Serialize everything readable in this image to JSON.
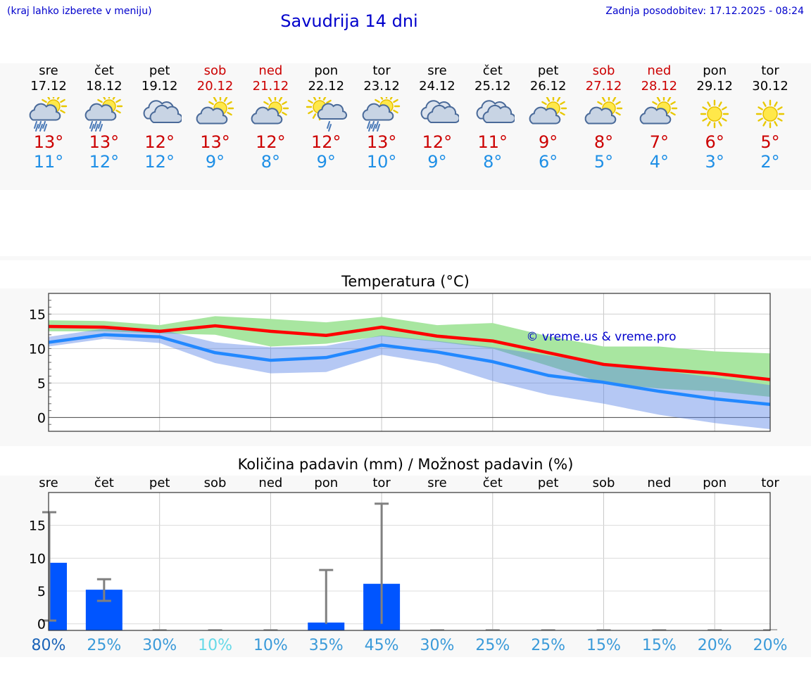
{
  "header": {
    "left_note": "(kraj lahko izberete v meniju)",
    "title": "Savudrija 14 dni",
    "updated": "Zadnja posodobitev: 17.12.2025 - 08:24"
  },
  "days": [
    {
      "name": "sre",
      "date": "17.12",
      "weekend": false,
      "icon": "sun-cloud-rain-icon",
      "tmax": "13°",
      "tmin": "11°"
    },
    {
      "name": "čet",
      "date": "18.12",
      "weekend": false,
      "icon": "sun-cloud-rain-icon",
      "tmax": "13°",
      "tmin": "12°"
    },
    {
      "name": "pet",
      "date": "19.12",
      "weekend": false,
      "icon": "cloudy-icon",
      "tmax": "12°",
      "tmin": "12°"
    },
    {
      "name": "sob",
      "date": "20.12",
      "weekend": true,
      "icon": "sun-cloud-icon",
      "tmax": "13°",
      "tmin": "9°"
    },
    {
      "name": "ned",
      "date": "21.12",
      "weekend": true,
      "icon": "sun-cloud-icon",
      "tmax": "12°",
      "tmin": "8°"
    },
    {
      "name": "pon",
      "date": "22.12",
      "weekend": false,
      "icon": "sun-cloud-light-rain-icon",
      "tmax": "12°",
      "tmin": "9°"
    },
    {
      "name": "tor",
      "date": "23.12",
      "weekend": false,
      "icon": "sun-cloud-rain-icon",
      "tmax": "13°",
      "tmin": "10°"
    },
    {
      "name": "sre",
      "date": "24.12",
      "weekend": false,
      "icon": "cloudy-icon",
      "tmax": "12°",
      "tmin": "9°"
    },
    {
      "name": "čet",
      "date": "25.12",
      "weekend": false,
      "icon": "cloudy-icon",
      "tmax": "11°",
      "tmin": "8°"
    },
    {
      "name": "pet",
      "date": "26.12",
      "weekend": false,
      "icon": "sun-cloud-icon",
      "tmax": "9°",
      "tmin": "6°"
    },
    {
      "name": "sob",
      "date": "27.12",
      "weekend": true,
      "icon": "sun-cloud-icon",
      "tmax": "8°",
      "tmin": "5°"
    },
    {
      "name": "ned",
      "date": "28.12",
      "weekend": true,
      "icon": "sun-cloud-icon",
      "tmax": "7°",
      "tmin": "4°"
    },
    {
      "name": "pon",
      "date": "29.12",
      "weekend": false,
      "icon": "sun-icon",
      "tmax": "6°",
      "tmin": "3°"
    },
    {
      "name": "tor",
      "date": "30.12",
      "weekend": false,
      "icon": "sun-icon",
      "tmax": "5°",
      "tmin": "2°"
    }
  ],
  "colors": {
    "accent": "#0000cc",
    "tmax": "#cc0000",
    "tmin": "#1e8fe6",
    "max_line": "#ff0000",
    "min_line": "#2288ff",
    "max_band": "#a8e6a0",
    "min_band": "#a8c0f0",
    "overlap": "#78c2a0",
    "bar": "#0055ff",
    "whisker": "#808080"
  },
  "chart_data": [
    {
      "type": "line",
      "title": "Temperatura (°C)",
      "ylim": [
        -2,
        18
      ],
      "yticks": [
        "15",
        "10",
        "5",
        "0"
      ],
      "ytick_values": [
        15,
        10,
        5,
        0
      ],
      "watermark": "© vreme.us & vreme.pro",
      "x": [
        0,
        1,
        2,
        3,
        4,
        5,
        6,
        7,
        8,
        9,
        10,
        11,
        12,
        13
      ],
      "series": [
        {
          "name": "max",
          "values": [
            13.2,
            13.1,
            12.5,
            13.3,
            12.5,
            11.9,
            13.1,
            11.8,
            11.1,
            9.4,
            7.7,
            7.0,
            6.4,
            5.5
          ],
          "band_low": [
            12.5,
            12.5,
            12.2,
            12.0,
            10.3,
            10.7,
            11.8,
            11.0,
            10.0,
            7.5,
            5.0,
            4.2,
            3.8,
            3.0
          ],
          "band_high": [
            14.1,
            14.0,
            13.4,
            14.7,
            14.3,
            13.8,
            14.6,
            13.4,
            13.7,
            11.8,
            10.3,
            10.3,
            9.6,
            9.3
          ]
        },
        {
          "name": "min",
          "values": [
            10.9,
            12.0,
            11.7,
            9.4,
            8.3,
            8.7,
            10.5,
            9.5,
            8.1,
            6.1,
            5.1,
            3.8,
            2.7,
            1.9
          ],
          "band_low": [
            10.3,
            11.4,
            10.8,
            7.9,
            6.4,
            6.6,
            9.1,
            7.8,
            5.3,
            3.3,
            2.0,
            0.4,
            -0.8,
            -1.7
          ],
          "band_high": [
            11.7,
            12.9,
            12.8,
            10.9,
            10.2,
            10.4,
            11.9,
            11.1,
            10.2,
            9.0,
            7.9,
            6.8,
            5.8,
            4.7
          ]
        }
      ]
    },
    {
      "type": "bar",
      "title": "Količina padavin (mm) / Možnost padavin (%)",
      "ylim": [
        -1,
        20
      ],
      "yticks": [
        "15",
        "10",
        "5",
        "0"
      ],
      "ytick_values": [
        15,
        10,
        5,
        0
      ],
      "categories": [
        "sre",
        "čet",
        "pet",
        "sob",
        "ned",
        "pon",
        "tor",
        "sre",
        "čet",
        "pet",
        "sob",
        "ned",
        "pon",
        "tor"
      ],
      "values": [
        9.3,
        5.2,
        0,
        0,
        0,
        0.2,
        6.1,
        0,
        0,
        0,
        0,
        0,
        0,
        0
      ],
      "err_low": [
        0.5,
        3.5,
        0,
        0,
        0,
        0,
        0,
        0,
        0,
        0,
        0,
        0,
        0,
        0
      ],
      "err_high": [
        17.0,
        6.8,
        0,
        0,
        0,
        8.2,
        18.3,
        0,
        0,
        0,
        0,
        0,
        0,
        0
      ],
      "probabilities": [
        "80%",
        "25%",
        "30%",
        "10%",
        "10%",
        "35%",
        "45%",
        "30%",
        "25%",
        "25%",
        "15%",
        "15%",
        "20%",
        "20%"
      ],
      "prob_colors": [
        "#1a63b8",
        "#3a9ad9",
        "#3a9ad9",
        "#66d9e8",
        "#3a9ad9",
        "#3a9ad9",
        "#3a9ad9",
        "#3a9ad9",
        "#3a9ad9",
        "#3a9ad9",
        "#3a9ad9",
        "#3a9ad9",
        "#3a9ad9",
        "#3a9ad9"
      ]
    }
  ]
}
